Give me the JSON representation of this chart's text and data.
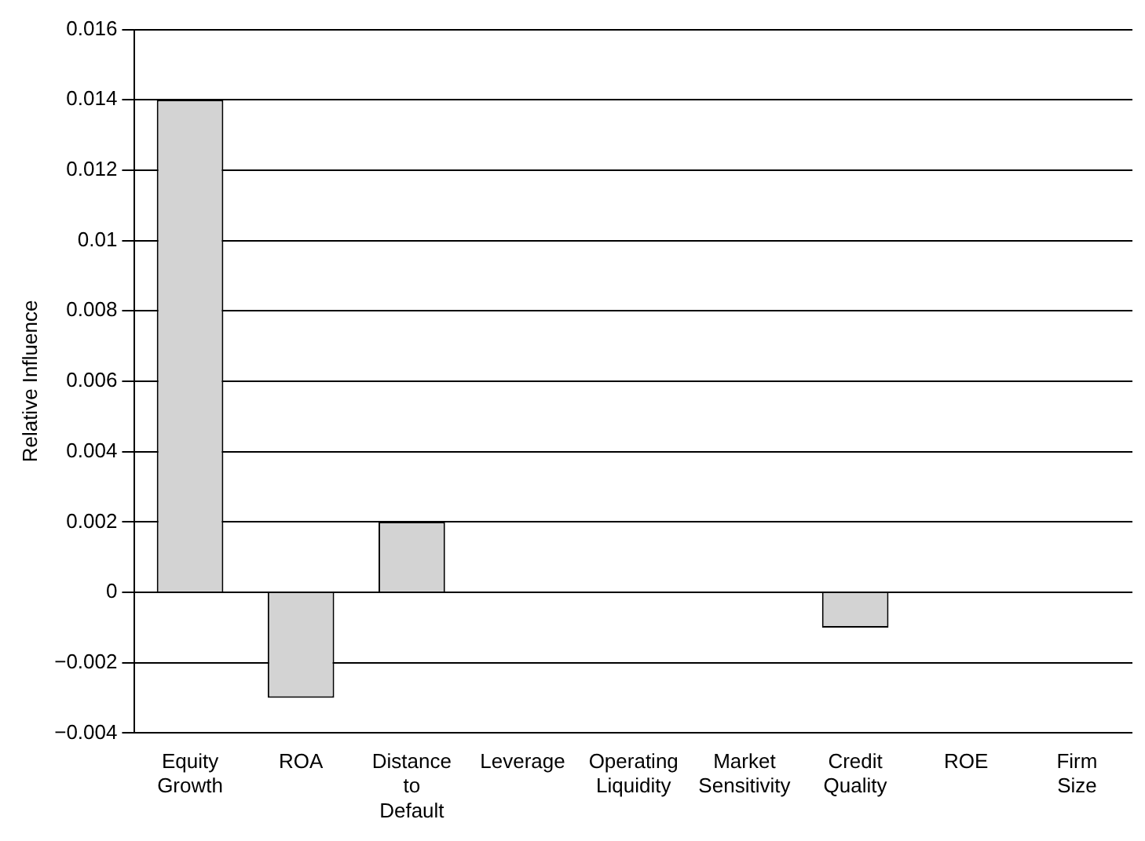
{
  "chart_data": {
    "type": "bar",
    "ylabel": "Relative Influence",
    "categories": [
      "Equity Growth",
      "ROA",
      "Distance to Default",
      "Leverage",
      "Operating Liquidity",
      "Market Sensitivity",
      "Credit Quality",
      "ROE",
      "Firm Size"
    ],
    "values": [
      0.014,
      -0.003,
      0.002,
      0,
      0,
      0,
      -0.001,
      0,
      0
    ],
    "color": "#d3d3d3",
    "ylim": [
      -0.004,
      0.016
    ],
    "yticks": [
      {
        "value": -0.004,
        "label": "−0.004"
      },
      {
        "value": -0.002,
        "label": "−0.002"
      },
      0,
      0.002,
      0.004,
      0.006,
      0.008,
      0.01,
      0.012,
      0.014,
      0.016
    ],
    "grid": "y",
    "legend": false
  }
}
